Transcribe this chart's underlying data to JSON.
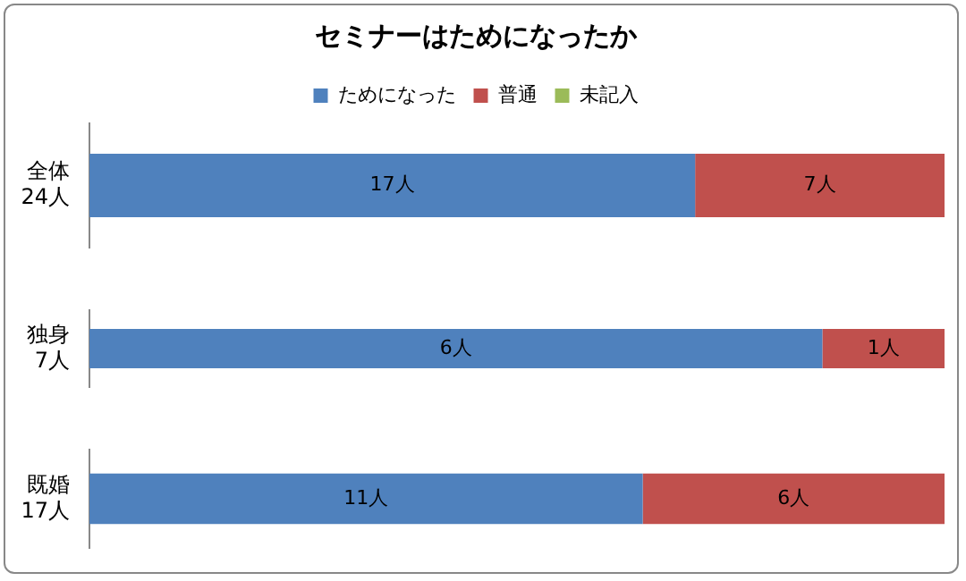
{
  "chart_data": [
    {
      "type": "bar",
      "title": "セミナーはためになったか",
      "orientation": "horizontal",
      "stacked": true,
      "tick_labels": "y",
      "legend": "top",
      "xlim": [
        0,
        24
      ],
      "categories": [
        "全体\n24人"
      ],
      "series": [
        {
          "name": "ためになった",
          "color": "#4f81bd",
          "values": [
            17
          ],
          "value_labels": [
            "17人"
          ]
        },
        {
          "name": "普通",
          "color": "#c0504d",
          "values": [
            7
          ],
          "value_labels": [
            "7人"
          ]
        },
        {
          "name": "未記入",
          "color": "#9bbb59",
          "values": [
            0
          ],
          "value_labels": [
            null
          ]
        }
      ]
    },
    {
      "type": "bar",
      "orientation": "horizontal",
      "stacked": true,
      "tick_labels": "y",
      "xlim": [
        0,
        7
      ],
      "categories": [
        "独身\n7人"
      ],
      "series": [
        {
          "color": "#4f81bd",
          "values": [
            6
          ],
          "value_labels": [
            "6人"
          ]
        },
        {
          "color": "#c0504d",
          "values": [
            1
          ],
          "value_labels": [
            "1人"
          ]
        },
        {
          "color": "#9bbb59",
          "values": [
            0
          ],
          "value_labels": [
            null
          ]
        }
      ]
    },
    {
      "type": "bar",
      "orientation": "horizontal",
      "stacked": true,
      "tick_labels": "y",
      "xlim": [
        0,
        17
      ],
      "categories": [
        "既婚\n17人"
      ],
      "series": [
        {
          "color": "#4f81bd",
          "values": [
            11
          ],
          "value_labels": [
            "11人"
          ]
        },
        {
          "color": "#c0504d",
          "values": [
            6
          ],
          "value_labels": [
            "6人"
          ]
        },
        {
          "color": "#9bbb59",
          "values": [
            0
          ],
          "value_labels": [
            null
          ]
        }
      ]
    }
  ]
}
